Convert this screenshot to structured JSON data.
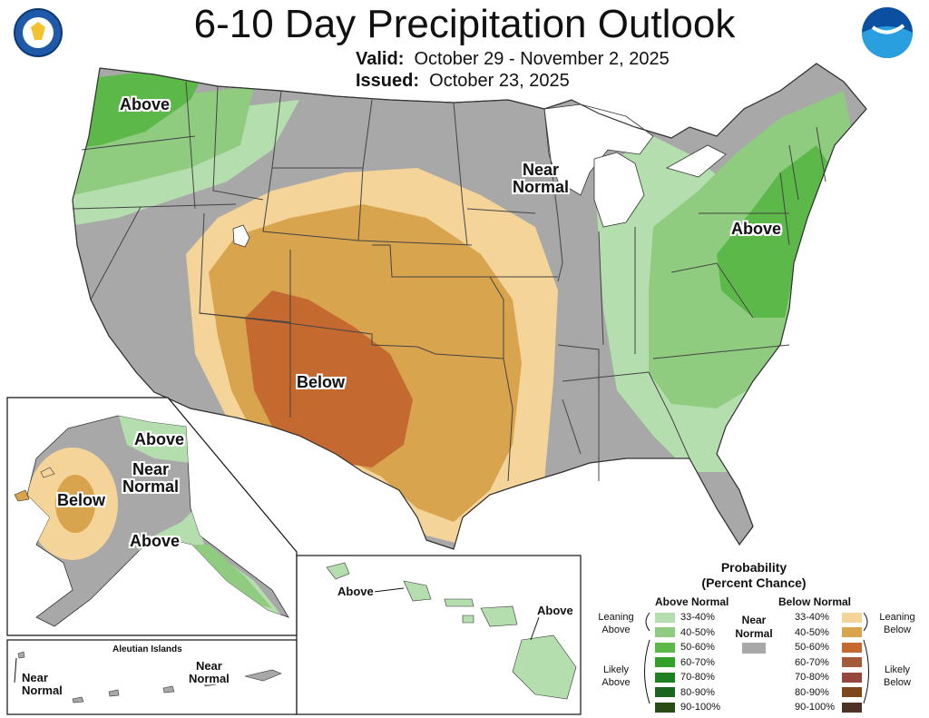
{
  "header": {
    "title": "6-10 Day Precipitation Outlook",
    "valid_label": "Valid:",
    "valid_value": "October 29 - November 2, 2025",
    "issued_label": "Issued:",
    "issued_value": "October 23, 2025"
  },
  "logos": {
    "left": "dept-of-commerce-seal",
    "right": "noaa-logo"
  },
  "map_labels": {
    "conus_above_nw": "Above",
    "conus_near_normal_line1": "Near",
    "conus_near_normal_line2": "Normal",
    "conus_above_ne": "Above",
    "conus_below": "Below",
    "ak_above_n": "Above",
    "ak_near_line1": "Near",
    "ak_near_line2": "Normal",
    "ak_below": "Below",
    "ak_above_s": "Above",
    "aleutian_title": "Aleutian Islands",
    "aleut_near_w_line1": "Near",
    "aleut_near_w_line2": "Normal",
    "aleut_near_e_line1": "Near",
    "aleut_near_e_line2": "Normal",
    "hi_above_w": "Above",
    "hi_above_e": "Above"
  },
  "legend": {
    "title_line1": "Probability",
    "title_line2": "(Percent Chance)",
    "above_header": "Above Normal",
    "below_header": "Below Normal",
    "near_line1": "Near",
    "near_line2": "Normal",
    "near_color": "#a8a8a8",
    "leaning_above_line1": "Leaning",
    "leaning_above_line2": "Above",
    "likely_above_line1": "Likely",
    "likely_above_line2": "Above",
    "leaning_below_line1": "Leaning",
    "leaning_below_line2": "Below",
    "likely_below_line1": "Likely",
    "likely_below_line2": "Below",
    "above": [
      {
        "label": "33-40%",
        "color": "#b5deaf"
      },
      {
        "label": "40-50%",
        "color": "#8fcc80"
      },
      {
        "label": "50-60%",
        "color": "#5cb848"
      },
      {
        "label": "60-70%",
        "color": "#33a02c"
      },
      {
        "label": "70-80%",
        "color": "#1e8021"
      },
      {
        "label": "80-90%",
        "color": "#1c6420"
      },
      {
        "label": "90-100%",
        "color": "#2a4b14"
      }
    ],
    "below": [
      {
        "label": "33-40%",
        "color": "#f4d498"
      },
      {
        "label": "40-50%",
        "color": "#d9a44e"
      },
      {
        "label": "50-60%",
        "color": "#c46a30"
      },
      {
        "label": "60-70%",
        "color": "#a55a3a"
      },
      {
        "label": "70-80%",
        "color": "#96463a"
      },
      {
        "label": "80-90%",
        "color": "#80461b"
      },
      {
        "label": "90-100%",
        "color": "#4e3225"
      }
    ]
  },
  "colors": {
    "near_normal": "#a8a8a8",
    "boundary": "#444444",
    "water": "#ffffff"
  }
}
